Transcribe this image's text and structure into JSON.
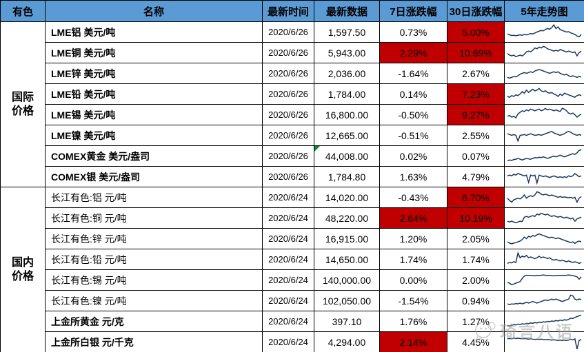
{
  "header": {
    "category": "有色",
    "name": "名称",
    "date": "最新时间",
    "value": "最新数据",
    "chg7": "7日涨跌幅",
    "chg30": "30日涨跌幅",
    "spark": "5年走势图"
  },
  "colors": {
    "header_bg": "#5B9BD5",
    "highlight_bg": "#C00000",
    "sparkline": "#17375E",
    "flag_green": "#00882b"
  },
  "watermark": {
    "text": "琦言八语",
    "icon": "wechat-chat-bubble-icon"
  },
  "sections": [
    {
      "label_line1": "国际",
      "label_line2": "价格",
      "rows": [
        {
          "name": "LME铝",
          "unit": "美元/吨",
          "name_bold": true,
          "date": "2020/6/26",
          "value": "1,597.50",
          "value_flag": false,
          "chg7": "0.73%",
          "chg7_hl": false,
          "chg30": "5.00%",
          "chg30_hl": true,
          "spark": [
            0.38,
            0.32,
            0.28,
            0.3,
            0.26,
            0.3,
            0.32,
            0.3,
            0.34,
            0.32,
            0.36,
            0.4,
            0.38,
            0.44,
            0.5,
            0.55,
            0.6,
            0.58,
            0.66,
            0.72,
            0.68,
            0.78,
            0.95,
            0.72,
            0.82,
            0.65,
            0.6,
            0.55,
            0.5,
            0.52,
            0.45,
            0.4,
            0.35,
            0.25,
            0.2,
            0.35
          ]
        },
        {
          "name": "LME铜",
          "unit": "美元/吨",
          "name_bold": true,
          "date": "2020/6/26",
          "value": "5,943.00",
          "value_flag": false,
          "chg7": "2.29%",
          "chg7_hl": true,
          "chg30": "10.69%",
          "chg30_hl": true,
          "spark": [
            0.45,
            0.35,
            0.3,
            0.35,
            0.25,
            0.3,
            0.35,
            0.3,
            0.4,
            0.55,
            0.6,
            0.55,
            0.65,
            0.8,
            0.75,
            0.85,
            0.8,
            0.9,
            0.85,
            0.75,
            0.7,
            0.65,
            0.6,
            0.65,
            0.6,
            0.7,
            0.65,
            0.6,
            0.55,
            0.6,
            0.55,
            0.5,
            0.55,
            0.3,
            0.5,
            0.6
          ]
        },
        {
          "name": "LME锌",
          "unit": "美元/吨",
          "name_bold": true,
          "date": "2020/6/26",
          "value": "2,036.00",
          "value_flag": false,
          "chg7": "-1.64%",
          "chg7_hl": false,
          "chg30": "2.67%",
          "chg30_hl": false,
          "spark": [
            0.25,
            0.2,
            0.25,
            0.3,
            0.28,
            0.35,
            0.45,
            0.5,
            0.55,
            0.5,
            0.55,
            0.6,
            0.55,
            0.65,
            0.7,
            0.75,
            0.7,
            0.65,
            0.6,
            0.55,
            0.5,
            0.55,
            0.6,
            0.55,
            0.6,
            0.5,
            0.45,
            0.4,
            0.45,
            0.35,
            0.3,
            0.35,
            0.3,
            0.25,
            0.3,
            0.28
          ]
        },
        {
          "name": "LME铅",
          "unit": "美元/吨",
          "name_bold": true,
          "date": "2020/6/26",
          "value": "1,784.00",
          "value_flag": false,
          "chg7": "0.14%",
          "chg7_hl": false,
          "chg30": "7.23%",
          "chg30_hl": true,
          "spark": [
            0.35,
            0.3,
            0.4,
            0.35,
            0.45,
            0.4,
            0.5,
            0.65,
            0.55,
            0.75,
            0.6,
            0.7,
            0.8,
            0.7,
            0.75,
            0.85,
            0.7,
            0.65,
            0.7,
            0.6,
            0.55,
            0.6,
            0.5,
            0.45,
            0.35,
            0.5,
            0.4,
            0.55,
            0.5,
            0.45,
            0.4,
            0.35,
            0.3,
            0.4,
            0.45,
            0.4
          ]
        },
        {
          "name": "LME锡",
          "unit": "美元/吨",
          "name_bold": true,
          "date": "2020/6/26",
          "value": "16,800.00",
          "value_flag": false,
          "chg7": "-0.50%",
          "chg7_hl": false,
          "chg30": "9.27%",
          "chg30_hl": true,
          "spark": [
            0.4,
            0.45,
            0.35,
            0.4,
            0.3,
            0.55,
            0.65,
            0.75,
            0.7,
            0.8,
            0.75,
            0.85,
            0.8,
            0.75,
            0.8,
            0.85,
            0.75,
            0.8,
            0.9,
            0.8,
            0.85,
            0.8,
            0.75,
            0.8,
            0.75,
            0.7,
            0.9,
            0.85,
            0.75,
            0.6,
            0.55,
            0.6,
            0.5,
            0.35,
            0.45,
            0.55
          ]
        },
        {
          "name": "LME镍",
          "unit": "美元/吨",
          "name_bold": true,
          "date": "2020/6/26",
          "value": "12,665.00",
          "value_flag": false,
          "chg7": "-0.51%",
          "chg7_hl": false,
          "chg30": "2.55%",
          "chg30_hl": false,
          "spark": [
            0.6,
            0.55,
            0.5,
            0.55,
            0.5,
            0.15,
            0.5,
            0.52,
            0.55,
            0.5,
            0.55,
            0.6,
            0.55,
            0.5,
            0.52,
            0.55,
            0.5,
            0.55,
            0.6,
            0.65,
            0.7,
            0.75,
            0.65,
            0.6,
            0.55,
            0.5,
            0.55,
            0.6,
            0.7,
            0.75,
            0.7,
            0.6,
            0.55,
            0.5,
            0.55,
            0.5
          ]
        },
        {
          "name": "COMEX黄金",
          "unit": "美元/盎司",
          "name_bold": true,
          "date": "2020/6/26",
          "value": "44,008.00",
          "value_flag": true,
          "chg7": "0.02%",
          "chg7_hl": false,
          "chg30": "0.07%",
          "chg30_hl": false,
          "spark": [
            0.2,
            0.25,
            0.22,
            0.28,
            0.3,
            0.35,
            0.3,
            0.25,
            0.3,
            0.35,
            0.32,
            0.3,
            0.35,
            0.4,
            0.38,
            0.42,
            0.4,
            0.45,
            0.4,
            0.35,
            0.4,
            0.45,
            0.5,
            0.45,
            0.5,
            0.55,
            0.5,
            0.45,
            0.5,
            0.55,
            0.6,
            0.65,
            0.6,
            0.7,
            0.85,
            0.9
          ]
        },
        {
          "name": "COMEX银",
          "unit": "美元/盎司",
          "name_bold": true,
          "date": "2020/6/26",
          "value": "1,784.80",
          "value_flag": false,
          "chg7": "1.63%",
          "chg7_hl": false,
          "chg30": "4.79%",
          "chg30_hl": false,
          "spark": [
            0.55,
            0.6,
            0.55,
            0.65,
            0.6,
            0.7,
            0.65,
            0.6,
            0.55,
            0.6,
            0.15,
            0.6,
            0.55,
            0.6,
            0.1,
            0.6,
            0.55,
            0.5,
            0.55,
            0.5,
            0.45,
            0.5,
            0.55,
            0.5,
            0.45,
            0.5,
            0.45,
            0.5,
            0.45,
            0.55,
            0.5,
            0.55,
            0.7,
            0.6,
            0.5,
            0.55
          ]
        }
      ]
    },
    {
      "label_line1": "国内",
      "label_line2": "价格",
      "rows": [
        {
          "name": "长江有色:铝",
          "unit": "元/吨",
          "name_bold": false,
          "date": "2020/6/24",
          "value": "14,020.00",
          "value_flag": false,
          "chg7": "-0.43%",
          "chg7_hl": false,
          "chg30": "6.70%",
          "chg30_hl": true,
          "spark": [
            0.45,
            0.3,
            0.2,
            0.35,
            0.4,
            0.45,
            0.4,
            0.5,
            0.65,
            0.45,
            0.55,
            0.6,
            0.55,
            0.65,
            0.85,
            0.8,
            0.7,
            0.65,
            0.7,
            0.65,
            0.6,
            0.65,
            0.6,
            0.55,
            0.5,
            0.55,
            0.5,
            0.52,
            0.5,
            0.48,
            0.5,
            0.45,
            0.5,
            0.2,
            0.45,
            0.55
          ]
        },
        {
          "name": "长江有色:铜",
          "unit": "元/吨",
          "name_bold": false,
          "date": "2020/6/24",
          "value": "48,220.00",
          "value_flag": false,
          "chg7": "2.64%",
          "chg7_hl": true,
          "chg30": "10.19%",
          "chg30_hl": true,
          "spark": [
            0.3,
            0.25,
            0.3,
            0.25,
            0.2,
            0.25,
            0.3,
            0.28,
            0.55,
            0.6,
            0.55,
            0.6,
            0.65,
            0.6,
            0.75,
            0.7,
            0.8,
            0.75,
            0.7,
            0.75,
            0.65,
            0.6,
            0.65,
            0.6,
            0.55,
            0.6,
            0.55,
            0.5,
            0.55,
            0.5,
            0.45,
            0.5,
            0.3,
            0.45,
            0.5,
            0.55
          ]
        },
        {
          "name": "长江有色:锌",
          "unit": "元/吨",
          "name_bold": false,
          "date": "2020/6/24",
          "value": "16,915.00",
          "value_flag": false,
          "chg7": "1.20%",
          "chg7_hl": false,
          "chg30": "2.05%",
          "chg30_hl": false,
          "spark": [
            0.3,
            0.22,
            0.18,
            0.22,
            0.25,
            0.3,
            0.35,
            0.45,
            0.6,
            0.5,
            0.65,
            0.6,
            0.7,
            0.65,
            0.75,
            0.8,
            0.75,
            0.7,
            0.65,
            0.6,
            0.55,
            0.6,
            0.55,
            0.5,
            0.55,
            0.5,
            0.45,
            0.4,
            0.35,
            0.3,
            0.25,
            0.3,
            0.2,
            0.3,
            0.35,
            0.3
          ]
        },
        {
          "name": "长江有色:铅",
          "unit": "元/吨",
          "name_bold": false,
          "date": "2020/6/24",
          "value": "14,650.00",
          "value_flag": false,
          "chg7": "1.74%",
          "chg7_hl": false,
          "chg30": "1.74%",
          "chg30_hl": false,
          "spark": [
            0.25,
            0.3,
            0.28,
            0.35,
            0.3,
            0.9,
            0.6,
            0.7,
            0.65,
            0.75,
            0.6,
            0.65,
            0.6,
            0.55,
            0.6,
            0.7,
            0.6,
            0.65,
            0.6,
            0.55,
            0.6,
            0.5,
            0.45,
            0.5,
            0.45,
            0.4,
            0.45,
            0.4,
            0.35,
            0.4,
            0.35,
            0.3,
            0.35,
            0.3,
            0.25,
            0.3
          ]
        },
        {
          "name": "长江有色:锡",
          "unit": "元/吨",
          "name_bold": false,
          "date": "2020/6/24",
          "value": "140,000.00",
          "value_flag": false,
          "chg7": "0.00%",
          "chg7_hl": false,
          "chg30": "2.00%",
          "chg30_hl": false,
          "spark": [
            0.35,
            0.3,
            0.2,
            0.25,
            0.3,
            0.35,
            0.4,
            0.6,
            0.75,
            0.8,
            0.78,
            0.8,
            0.78,
            0.76,
            0.8,
            0.78,
            0.8,
            0.82,
            0.8,
            0.78,
            0.8,
            0.78,
            0.76,
            0.78,
            0.8,
            0.78,
            0.8,
            0.78,
            0.8,
            0.82,
            0.8,
            0.78,
            0.75,
            0.7,
            0.55,
            0.7
          ]
        },
        {
          "name": "长江有色:镍",
          "unit": "元/吨",
          "name_bold": false,
          "date": "2020/6/24",
          "value": "102,050.00",
          "value_flag": false,
          "chg7": "-1.54%",
          "chg7_hl": false,
          "chg30": "0.94%",
          "chg30_hl": false,
          "spark": [
            0.3,
            0.25,
            0.3,
            0.28,
            0.32,
            0.3,
            0.35,
            0.3,
            0.35,
            0.4,
            0.35,
            0.4,
            0.45,
            0.4,
            0.35,
            0.4,
            0.45,
            0.5,
            0.55,
            0.5,
            0.55,
            0.6,
            0.55,
            0.6,
            0.55,
            0.5,
            0.45,
            0.5,
            0.55,
            0.6,
            0.85,
            0.8,
            0.6,
            0.55,
            0.6,
            0.58
          ]
        },
        {
          "name": "上金所黄金",
          "unit": "元/克",
          "name_bold": true,
          "date": "2020/6/24",
          "value": "397.10",
          "value_flag": false,
          "chg7": "1.76%",
          "chg7_hl": false,
          "chg30": "1.27%",
          "chg30_hl": false,
          "spark": [
            0.25,
            0.2,
            0.25,
            0.3,
            0.28,
            0.32,
            0.3,
            0.35,
            0.32,
            0.38,
            0.35,
            0.4,
            0.38,
            0.42,
            0.4,
            0.45,
            0.42,
            0.48,
            0.45,
            0.5,
            0.48,
            0.52,
            0.5,
            0.55,
            0.52,
            0.58,
            0.55,
            0.6,
            0.58,
            0.62,
            0.7,
            0.68,
            0.75,
            0.8,
            0.85,
            0.9
          ]
        },
        {
          "name": "上金所白银",
          "unit": "元/千克",
          "name_bold": true,
          "date": "2020/6/24",
          "value": "4,294.00",
          "value_flag": false,
          "chg7": "2.14%",
          "chg7_hl": true,
          "chg30": "4.45%",
          "chg30_hl": false,
          "spark": [
            0.7,
            0.72,
            0.7,
            0.75,
            0.72,
            0.74,
            0.72,
            0.7,
            0.72,
            0.7,
            0.68,
            0.7,
            0.68,
            0.66,
            0.68,
            0.66,
            0.68,
            0.66,
            0.64,
            0.66,
            0.64,
            0.62,
            0.64,
            0.62,
            0.6,
            0.62,
            0.6,
            0.62,
            0.6,
            0.62,
            0.68,
            0.64,
            0.7,
            0.05,
            0.6,
            0.65
          ]
        }
      ]
    }
  ]
}
